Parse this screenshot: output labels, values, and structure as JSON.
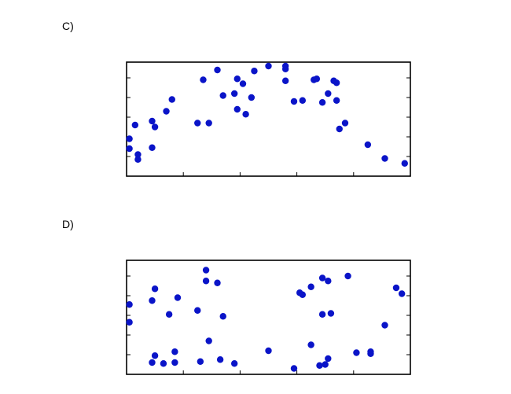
{
  "panels": {
    "c_label": "C)",
    "d_label": "D)"
  },
  "colors": {
    "marker": "#0a14c8",
    "frame": "#000000"
  },
  "chart_data": [
    {
      "type": "scatter",
      "panel": "C)",
      "grid": false,
      "legend": "none",
      "xlim": [
        0,
        5
      ],
      "ylim": [
        0,
        5.8
      ],
      "xticks": [
        0,
        1,
        2,
        3,
        4,
        5
      ],
      "yticks": [
        1,
        2,
        3,
        4,
        5
      ],
      "tick_labels_shown": false,
      "points": [
        [
          0.05,
          1.9
        ],
        [
          0.05,
          1.4
        ],
        [
          0.15,
          2.6
        ],
        [
          0.2,
          1.1
        ],
        [
          0.2,
          0.85
        ],
        [
          0.45,
          2.8
        ],
        [
          0.45,
          1.45
        ],
        [
          0.5,
          2.5
        ],
        [
          0.7,
          3.3
        ],
        [
          0.8,
          3.9
        ],
        [
          1.25,
          2.7
        ],
        [
          1.35,
          4.9
        ],
        [
          1.45,
          2.7
        ],
        [
          1.6,
          5.4
        ],
        [
          1.7,
          4.1
        ],
        [
          1.9,
          4.2
        ],
        [
          1.95,
          3.4
        ],
        [
          1.95,
          4.95
        ],
        [
          2.05,
          4.7
        ],
        [
          2.1,
          3.15
        ],
        [
          2.2,
          4.0
        ],
        [
          2.25,
          5.35
        ],
        [
          2.5,
          5.6
        ],
        [
          2.8,
          5.6
        ],
        [
          2.8,
          5.45
        ],
        [
          2.8,
          4.85
        ],
        [
          2.95,
          3.8
        ],
        [
          3.1,
          3.85
        ],
        [
          3.3,
          4.9
        ],
        [
          3.35,
          4.95
        ],
        [
          3.45,
          3.75
        ],
        [
          3.55,
          4.2
        ],
        [
          3.65,
          4.85
        ],
        [
          3.7,
          4.75
        ],
        [
          3.7,
          3.85
        ],
        [
          3.75,
          2.4
        ],
        [
          3.85,
          2.7
        ],
        [
          4.25,
          1.6
        ],
        [
          4.55,
          0.9
        ],
        [
          4.9,
          0.65
        ]
      ]
    },
    {
      "type": "scatter",
      "panel": "D)",
      "grid": false,
      "legend": "none",
      "xlim": [
        0,
        5
      ],
      "ylim": [
        0,
        5.8
      ],
      "xticks": [
        0,
        1,
        2,
        3,
        4,
        5
      ],
      "yticks": [
        1,
        2,
        3,
        4,
        5
      ],
      "tick_labels_shown": false,
      "points": [
        [
          0.05,
          3.55
        ],
        [
          0.05,
          2.65
        ],
        [
          0.45,
          3.75
        ],
        [
          0.5,
          4.35
        ],
        [
          0.5,
          0.95
        ],
        [
          0.45,
          0.6
        ],
        [
          0.65,
          0.55
        ],
        [
          0.75,
          3.05
        ],
        [
          0.85,
          1.15
        ],
        [
          0.85,
          0.6
        ],
        [
          0.9,
          3.9
        ],
        [
          1.25,
          3.25
        ],
        [
          1.3,
          0.65
        ],
        [
          1.4,
          5.3
        ],
        [
          1.4,
          4.75
        ],
        [
          1.45,
          1.7
        ],
        [
          1.6,
          4.65
        ],
        [
          1.65,
          0.75
        ],
        [
          1.7,
          2.95
        ],
        [
          1.9,
          0.55
        ],
        [
          2.5,
          1.2
        ],
        [
          2.95,
          0.3
        ],
        [
          3.05,
          4.15
        ],
        [
          3.1,
          4.05
        ],
        [
          3.25,
          4.45
        ],
        [
          3.25,
          1.5
        ],
        [
          3.4,
          0.45
        ],
        [
          3.45,
          4.9
        ],
        [
          3.45,
          3.05
        ],
        [
          3.5,
          0.5
        ],
        [
          3.55,
          4.75
        ],
        [
          3.55,
          0.8
        ],
        [
          3.6,
          3.1
        ],
        [
          3.9,
          5.0
        ],
        [
          4.05,
          1.1
        ],
        [
          4.3,
          1.15
        ],
        [
          4.3,
          1.05
        ],
        [
          4.55,
          2.5
        ],
        [
          4.75,
          4.4
        ],
        [
          4.85,
          4.1
        ]
      ]
    }
  ]
}
